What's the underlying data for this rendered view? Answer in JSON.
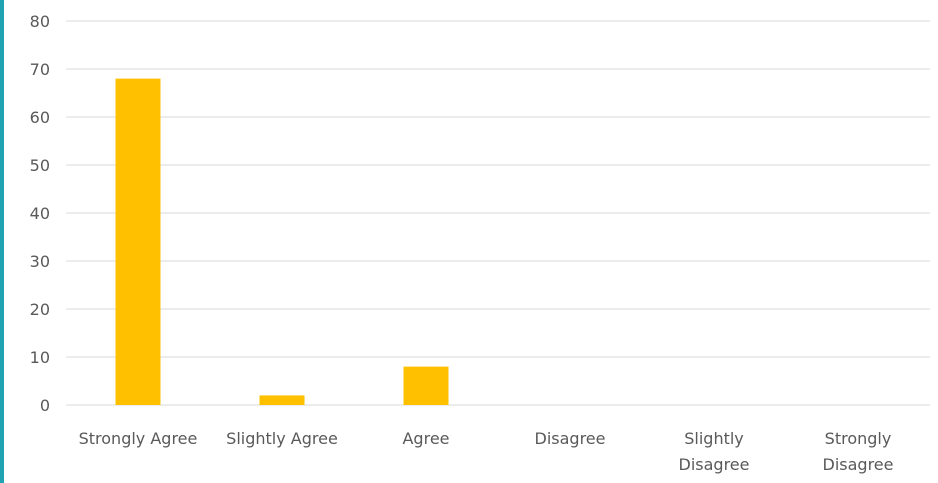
{
  "frame": {
    "left_edge_color": "#1fa3b0"
  },
  "chart_data": {
    "type": "bar",
    "categories": [
      [
        "Strongly Agree"
      ],
      [
        "Slightly Agree"
      ],
      [
        "Agree"
      ],
      [
        "Disagree"
      ],
      [
        "Slightly",
        "Disagree"
      ],
      [
        "Strongly",
        "Disagree"
      ]
    ],
    "values": [
      68,
      2,
      8,
      0,
      0,
      0
    ],
    "ylim": [
      0,
      80
    ],
    "yticks": [
      0,
      10,
      20,
      30,
      40,
      50,
      60,
      70,
      80
    ],
    "grid": true,
    "bar_color": "#ffc000",
    "grid_color": "#d9d9d9",
    "text_color": "#595959",
    "title": "",
    "xlabel": "",
    "ylabel": ""
  }
}
